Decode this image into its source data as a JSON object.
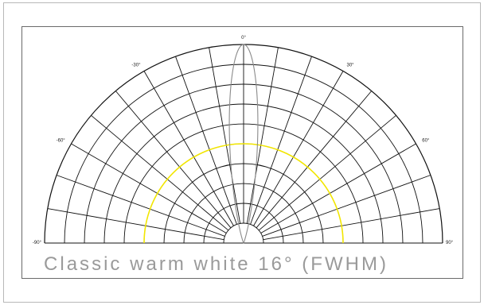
{
  "chart_data": {
    "type": "polar",
    "title": "Classic warm white 16° (FWHM)",
    "angle_range": [
      -90,
      90
    ],
    "angle_step": 10,
    "radial_rings": 10,
    "grid": true,
    "angle_tick_labels": [
      "-90°",
      "-60°",
      "-30°",
      "0°",
      "30°",
      "60°",
      "90°"
    ],
    "angle_tick_values": [
      -90,
      -60,
      -30,
      0,
      30,
      60,
      90
    ],
    "series": [
      {
        "role": "intensity-distribution",
        "color": "#8a8a8a",
        "fwhm_deg": 16,
        "r_max": 1.0
      },
      {
        "role": "half-maximum-ring",
        "color": "#f2e600",
        "r": 0.5
      }
    ]
  }
}
